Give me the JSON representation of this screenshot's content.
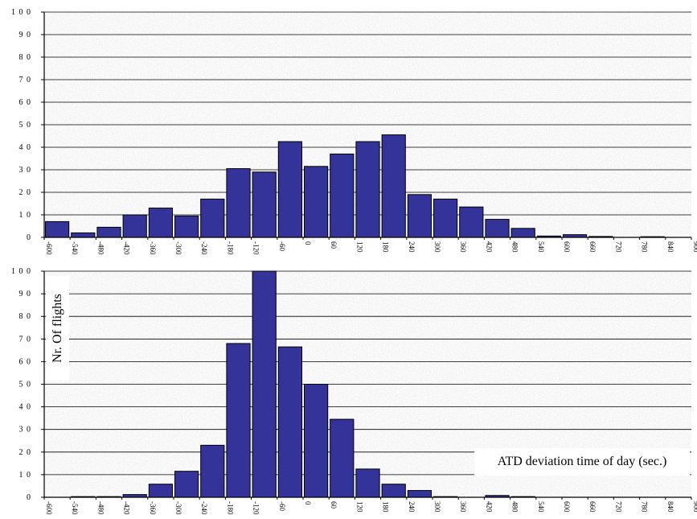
{
  "chart_data": [
    {
      "type": "bar",
      "title": "",
      "xlabel": "",
      "ylabel": "",
      "ylim": [
        0,
        100
      ],
      "yticks": [
        "0",
        "1 0",
        "2 0",
        "3 0",
        "4 0",
        "5 0",
        "6 0",
        "7 0",
        "8 0",
        "9 0",
        "1 0 0"
      ],
      "xticks": [
        "-600",
        "-540",
        "-480",
        "-420",
        "-360",
        "-300",
        "-240",
        "-180",
        "-120",
        "-60",
        "0",
        "60",
        "120",
        "180",
        "240",
        "300",
        "360",
        "420",
        "480",
        "540",
        "600",
        "660",
        "720",
        "780",
        "840",
        "900"
      ],
      "x": [
        -600,
        -540,
        -480,
        -420,
        -360,
        -300,
        -240,
        -180,
        -120,
        -60,
        0,
        60,
        120,
        180,
        240,
        300,
        360,
        420,
        480,
        540,
        600,
        660,
        720,
        780,
        840
      ],
      "values": [
        7,
        2,
        4.5,
        10,
        13,
        9.5,
        17,
        30.5,
        29,
        42.5,
        31.5,
        37,
        42.5,
        45.5,
        19,
        17,
        13.5,
        8,
        4,
        0.6,
        1.2,
        0.4,
        0,
        0.3,
        0
      ],
      "bar_color": "#333399",
      "grid": true,
      "background": "granite-gray"
    },
    {
      "type": "bar",
      "title": "",
      "xlabel": "ATD deviation time of day (sec.)",
      "ylabel": "Nr. Of flights",
      "ylim": [
        0,
        100
      ],
      "yticks": [
        "0",
        "1 0",
        "2 0",
        "3 0",
        "4 0",
        "5 0",
        "6 0",
        "7 0",
        "8 0",
        "9 0",
        "1 0 0"
      ],
      "xticks": [
        "-600",
        "-540",
        "-480",
        "-420",
        "-360",
        "-300",
        "-240",
        "-180",
        "-120",
        "-60",
        "0",
        "60",
        "120",
        "180",
        "240",
        "300",
        "360",
        "420",
        "480",
        "540",
        "600",
        "660",
        "720",
        "780",
        "840",
        "900"
      ],
      "x": [
        -600,
        -540,
        -480,
        -420,
        -360,
        -300,
        -240,
        -180,
        -120,
        -60,
        0,
        60,
        120,
        180,
        240,
        300,
        360,
        420,
        480,
        540,
        600,
        660,
        720,
        780,
        840
      ],
      "values": [
        0,
        0.3,
        0.3,
        1.2,
        5.8,
        11.5,
        23,
        68,
        100,
        66.5,
        50,
        34.5,
        12.5,
        5.8,
        3,
        0.3,
        0,
        0.8,
        0.3,
        0,
        0,
        0,
        0,
        0,
        0
      ],
      "bar_color": "#333399",
      "grid": true,
      "background": "granite-gray"
    }
  ]
}
